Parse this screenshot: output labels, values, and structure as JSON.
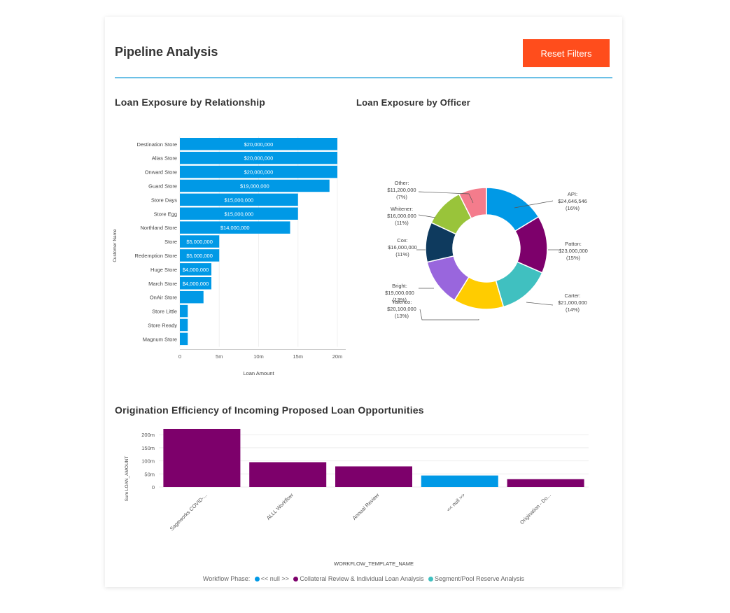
{
  "header": {
    "title": "Pipeline Analysis",
    "reset_label": "Reset Filters"
  },
  "colors": {
    "accent": "#ff4d1c",
    "divider": "#6cc0e6",
    "bar_blue": "#0099e6",
    "purple": "#7d006b"
  },
  "chart_data": [
    {
      "type": "bar",
      "orientation": "horizontal",
      "title": "Loan Exposure by Relationship",
      "xlabel": "Loan Amount",
      "ylabel": "Customer Name",
      "xlim": [
        0,
        21000000
      ],
      "xticks": [
        {
          "value": 0,
          "label": "0"
        },
        {
          "value": 5000000,
          "label": "5m"
        },
        {
          "value": 10000000,
          "label": "10m"
        },
        {
          "value": 15000000,
          "label": "15m"
        },
        {
          "value": 20000000,
          "label": "20m"
        }
      ],
      "categories": [
        "Destination Store",
        "Alias Store",
        "Onward Store",
        "Guard Store",
        "Store Days",
        "Store Egg",
        "Northland Store",
        "Store",
        "Redemption Store",
        "Huge Store",
        "March Store",
        "OnAir Store",
        "Store Little",
        "Store Ready",
        "Magnum Store"
      ],
      "values": [
        20000000,
        20000000,
        20000000,
        19000000,
        15000000,
        15000000,
        14000000,
        5000000,
        5000000,
        4000000,
        4000000,
        3000000,
        1000000,
        1000000,
        1000000
      ],
      "data_labels": [
        "$20,000,000",
        "$20,000,000",
        "$20,000,000",
        "$19,000,000",
        "$15,000,000",
        "$15,000,000",
        "$14,000,000",
        "$5,000,000",
        "$5,000,000",
        "$4,000,000",
        "$4,000,000",
        "",
        "",
        "",
        ""
      ]
    },
    {
      "type": "pie",
      "donut": true,
      "title": "Loan Exposure by Officer",
      "slices": [
        {
          "label": "API:",
          "amount": "$24,646,546",
          "pct": "(16%)",
          "value": 24646546,
          "color": "#0099e6"
        },
        {
          "label": "Patton:",
          "amount": "$23,000,000",
          "pct": "(15%)",
          "value": 23000000,
          "color": "#7d006b"
        },
        {
          "label": "Carter:",
          "amount": "$21,000,000",
          "pct": "(14%)",
          "value": 21000000,
          "color": "#40c0c0"
        },
        {
          "label": "Yalenco:",
          "amount": "$20,100,000",
          "pct": "(13%)",
          "value": 20100000,
          "color": "#ffcc00"
        },
        {
          "label": "Bright:",
          "amount": "$19,000,000",
          "pct": "(13%)",
          "value": 19000000,
          "color": "#9966dd"
        },
        {
          "label": "Cox:",
          "amount": "$16,000,000",
          "pct": "(11%)",
          "value": 16000000,
          "color": "#0e3a5e"
        },
        {
          "label": "Whitener:",
          "amount": "$16,000,000",
          "pct": "(11%)",
          "value": 16000000,
          "color": "#99c43a"
        },
        {
          "label": "Other:",
          "amount": "$11,200,000",
          "pct": "(7%)",
          "value": 11200000,
          "color": "#f47c8c"
        }
      ]
    },
    {
      "type": "bar",
      "title": "Origination Efficiency of Incoming Proposed Loan Opportunities",
      "xlabel": "WORKFLOW_TEMPLATE_NAME",
      "ylabel": "Sum LOAN_AMOUNT",
      "ylim": [
        0,
        230000000
      ],
      "yticks": [
        {
          "value": 0,
          "label": "0"
        },
        {
          "value": 50000000,
          "label": "50m"
        },
        {
          "value": 100000000,
          "label": "100m"
        },
        {
          "value": 150000000,
          "label": "150m"
        },
        {
          "value": 200000000,
          "label": "200m"
        }
      ],
      "categories": [
        "Sageworks COVID-...",
        "ALLL Workflow",
        "Annual Review",
        "<< null >>",
        "Origination - Do..."
      ],
      "values": [
        222000000,
        95000000,
        79000000,
        44000000,
        30000000
      ],
      "bar_colors": [
        "#7d006b",
        "#7d006b",
        "#7d006b",
        "#0099e6",
        "#7d006b"
      ],
      "legend": {
        "title": "Workflow Phase:",
        "items": [
          {
            "label": "<< null >>",
            "color": "#0099e6"
          },
          {
            "label": "Collateral Review & Individual Loan Analysis",
            "color": "#7d006b"
          },
          {
            "label": "Segment/Pool Reserve Analysis",
            "color": "#40c0c0"
          }
        ]
      }
    }
  ]
}
